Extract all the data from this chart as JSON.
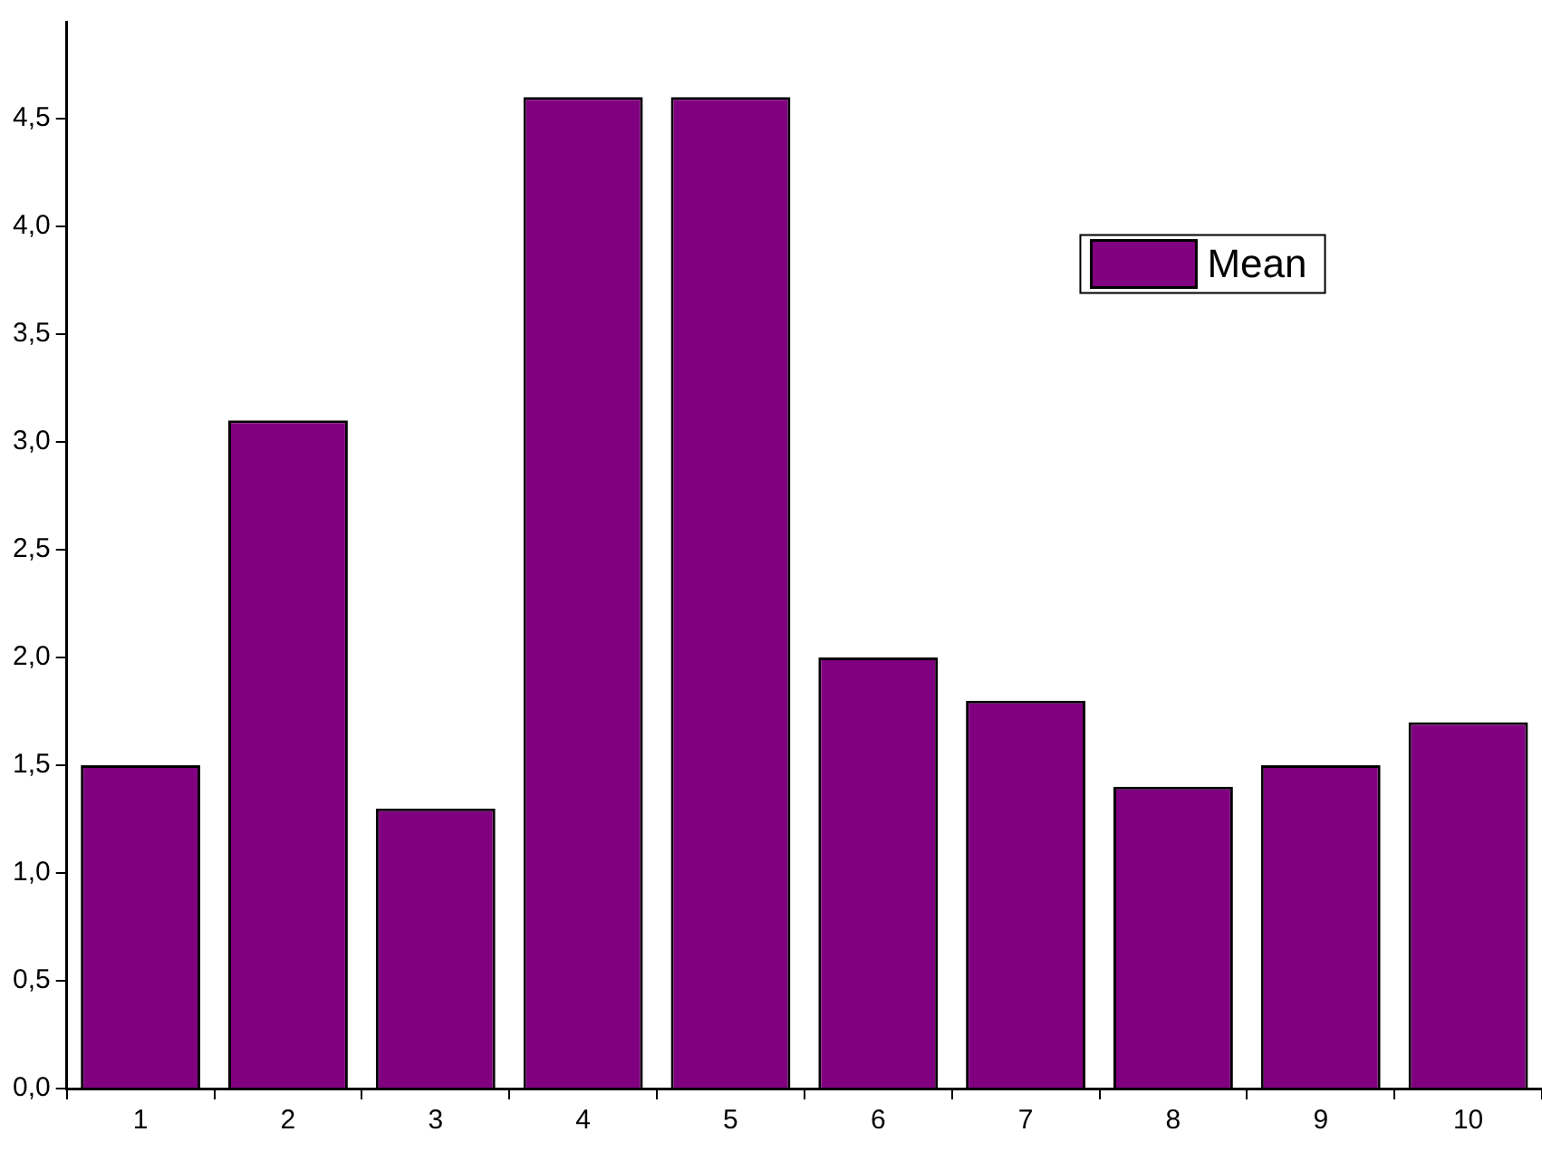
{
  "chart_data": {
    "type": "bar",
    "categories": [
      "1",
      "2",
      "3",
      "4",
      "5",
      "6",
      "7",
      "8",
      "9",
      "10"
    ],
    "series": [
      {
        "name": "Mean",
        "color": "#800080",
        "values": [
          1.5,
          3.1,
          1.3,
          4.6,
          4.6,
          2.0,
          1.8,
          1.4,
          1.5,
          1.7
        ]
      }
    ],
    "ylim": [
      0,
      4.95
    ],
    "yticks": [
      {
        "value": 0,
        "label": "0,0"
      },
      {
        "value": 0.5,
        "label": "0,5"
      },
      {
        "value": 1,
        "label": "1,0"
      },
      {
        "value": 1.5,
        "label": "1,5"
      },
      {
        "value": 2,
        "label": "2,0"
      },
      {
        "value": 2.5,
        "label": "2,5"
      },
      {
        "value": 3,
        "label": "3,0"
      },
      {
        "value": 3.5,
        "label": "3,5"
      },
      {
        "value": 4,
        "label": "4,0"
      },
      {
        "value": 4.5,
        "label": "4,5"
      }
    ],
    "grid": false,
    "legend": "top right"
  }
}
